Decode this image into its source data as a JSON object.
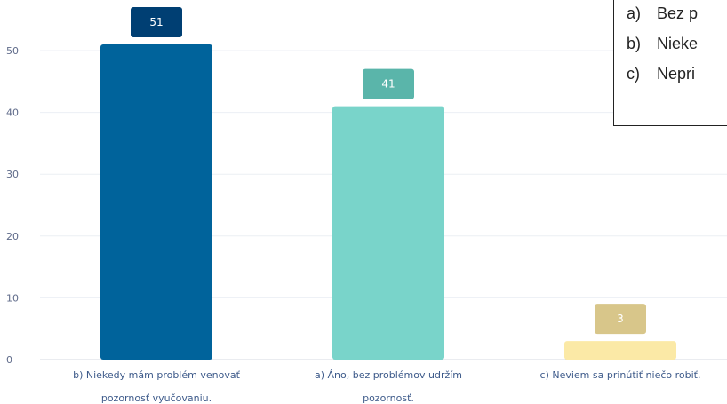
{
  "chart_data": {
    "type": "bar",
    "categories": [
      [
        "b) Niekedy mám problém venovať",
        "pozornosť vyučovaniu."
      ],
      [
        "a) Áno, bez problémov udržím",
        "pozornosť."
      ],
      [
        "c) Neviem sa prinútiť niečo robiť."
      ]
    ],
    "values": [
      51,
      41,
      3
    ],
    "bar_colors": [
      "#00639b",
      "#79d4ca",
      "#fbe9a6"
    ],
    "label_colors": [
      "#003f73",
      "#5ab5aa",
      "#d8c68a"
    ],
    "yticks": [
      0,
      10,
      20,
      30,
      40,
      50
    ],
    "ylim": [
      0,
      55
    ],
    "grid": true
  },
  "options_box": {
    "items": [
      {
        "marker": "a)",
        "text": "Bez p"
      },
      {
        "marker": "b)",
        "text": "Nieke"
      },
      {
        "marker": "c)",
        "text": "Nepri"
      }
    ]
  }
}
